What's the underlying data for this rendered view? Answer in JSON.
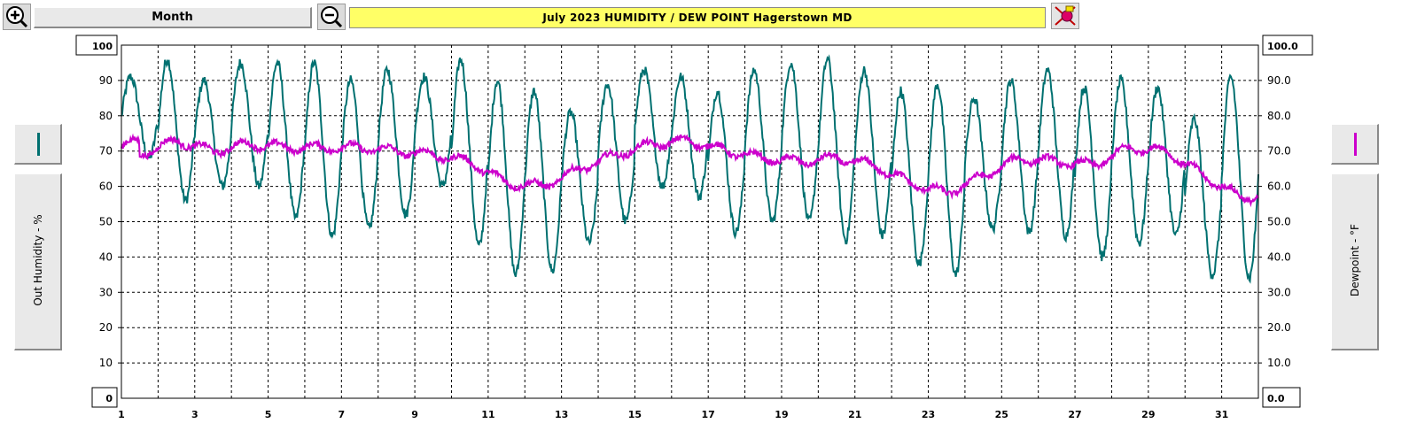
{
  "toolbar": {
    "zoom_in_icon": "zoom-in-icon",
    "zoom_out_icon": "zoom-out-icon",
    "period_label": "Month",
    "title": "July  2023   HUMIDITY / DEW POINT  Hagerstown MD",
    "paint_icon": "paint-bucket-icon"
  },
  "colors": {
    "humidity": "#007070",
    "dewpoint": "#cc00cc",
    "title_bg": "#ffff66",
    "grid": "#000000"
  },
  "left_axis": {
    "label": "Out Humidity - %",
    "max_box": "100",
    "min_box": "0",
    "ticks": [
      "90",
      "80",
      "70",
      "60",
      "50",
      "40",
      "30",
      "20",
      "10"
    ]
  },
  "right_axis": {
    "label": "Dewpoint - °F",
    "max_box": "100.0",
    "min_box": "0.0",
    "ticks": [
      "90.0",
      "80.0",
      "70.0",
      "60.0",
      "50.0",
      "40.0",
      "30.0",
      "20.0",
      "10.0"
    ]
  },
  "chart_data": {
    "type": "line",
    "title": "July  2023   HUMIDITY / DEW POINT  Hagerstown MD",
    "xlabel": "",
    "ylabel": "Out Humidity - %",
    "y2label": "Dewpoint - °F",
    "xlim": [
      1,
      32
    ],
    "ylim": [
      0,
      100
    ],
    "y2lim": [
      0,
      100
    ],
    "grid": true,
    "x_tick_labels": [
      "1",
      "3",
      "5",
      "7",
      "9",
      "11",
      "13",
      "15",
      "17",
      "19",
      "21",
      "23",
      "25",
      "27",
      "29",
      "31"
    ],
    "daily_humidity_max": [
      91,
      96,
      90,
      95,
      95,
      95,
      90,
      93,
      91,
      96,
      90,
      87,
      81,
      89,
      93,
      91,
      87,
      93,
      95,
      96,
      93,
      87,
      89,
      85,
      90,
      93,
      88,
      90,
      88,
      79,
      91
    ],
    "daily_humidity_min": [
      68,
      56,
      60,
      60,
      51,
      46,
      48,
      52,
      60,
      43,
      35,
      36,
      44,
      50,
      60,
      57,
      47,
      50,
      50,
      45,
      46,
      38,
      35,
      48,
      47,
      46,
      40,
      44,
      46,
      35,
      34
    ],
    "daily_dewpoint_mean": [
      69,
      73,
      70,
      72,
      71,
      71,
      71,
      70,
      69,
      67,
      61,
      60,
      65,
      69,
      72,
      73,
      70,
      68,
      67,
      68,
      66,
      61,
      58,
      63,
      68,
      67,
      66,
      71,
      70,
      63,
      57
    ],
    "series": [
      {
        "name": "Out Humidity - %",
        "axis": "left",
        "color": "#007070"
      },
      {
        "name": "Dewpoint - °F",
        "axis": "right",
        "color": "#cc00cc"
      }
    ]
  }
}
